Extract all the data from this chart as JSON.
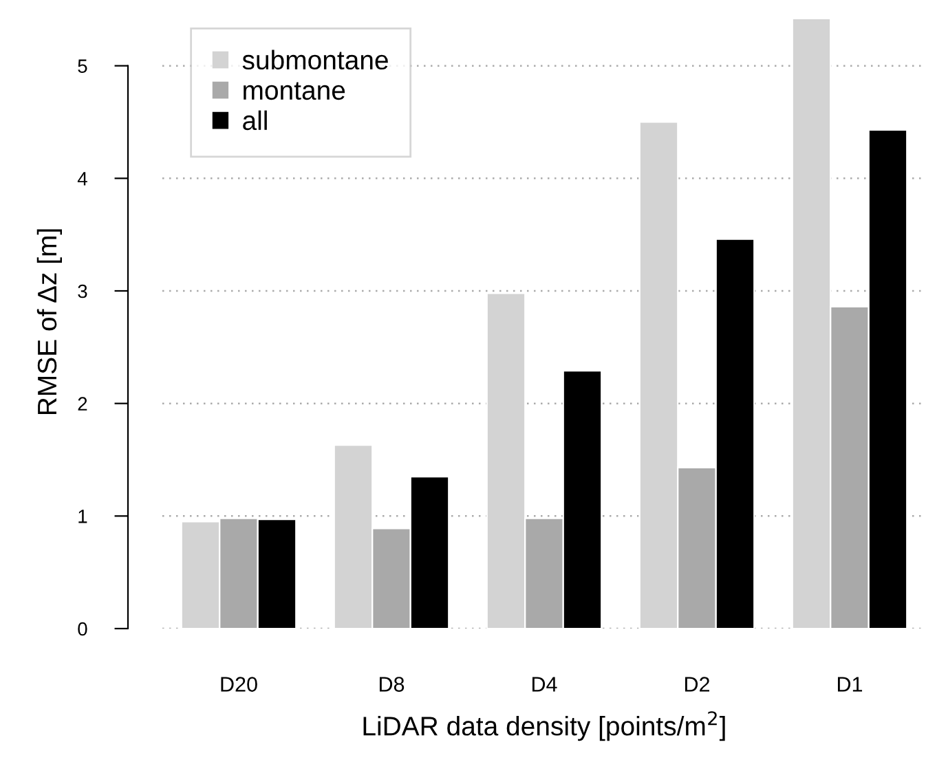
{
  "chart_data": {
    "type": "bar",
    "xlabel": "LiDAR data density [points/m$^{2}$]",
    "ylabel": "RMSE of Δz [m]",
    "categories": [
      "D20",
      "D8",
      "D4",
      "D2",
      "D1"
    ],
    "series": [
      {
        "name": "submontane",
        "color": "#d3d3d3",
        "values": [
          0.95,
          1.63,
          2.98,
          4.5,
          5.42
        ]
      },
      {
        "name": "montane",
        "color": "#a9a9a9",
        "values": [
          0.98,
          0.89,
          0.98,
          1.43,
          2.86
        ]
      },
      {
        "name": "all",
        "color": "#000000",
        "values": [
          0.97,
          1.35,
          2.29,
          3.46,
          4.43
        ]
      }
    ],
    "ylim": [
      0,
      5.45
    ],
    "yticks": [
      0,
      1,
      2,
      3,
      4,
      5
    ],
    "grid": "y",
    "legend": "top left"
  }
}
